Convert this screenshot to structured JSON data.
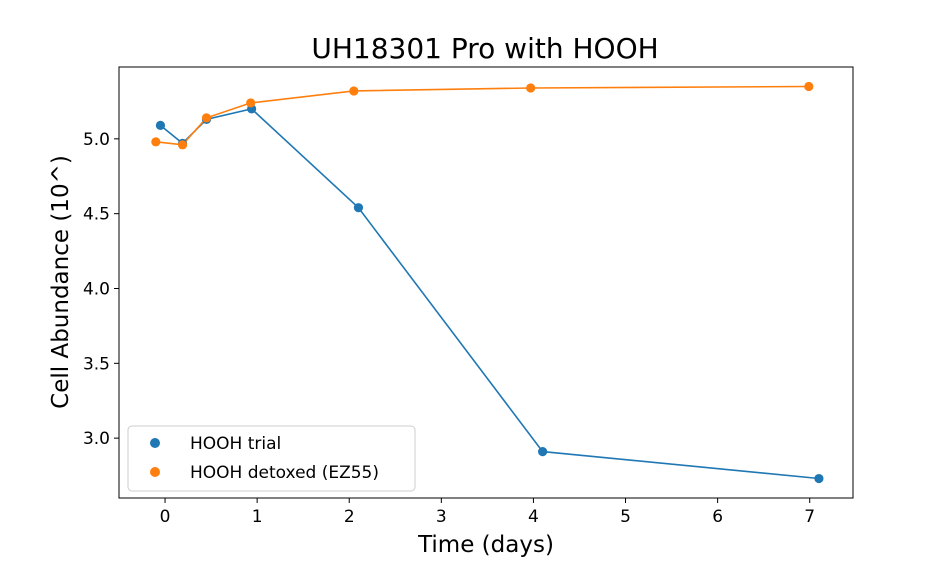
{
  "chart_data": {
    "type": "line",
    "title": "UH18301 Pro with HOOH",
    "xlabel": "Time (days)",
    "ylabel": "Cell Abundance (10^)",
    "xlim": [
      -0.5,
      7.47
    ],
    "ylim": [
      2.6,
      5.48
    ],
    "xticks": [
      0,
      1,
      2,
      3,
      4,
      5,
      6,
      7
    ],
    "yticks": [
      3.0,
      3.5,
      4.0,
      4.5,
      5.0
    ],
    "ytick_labels": [
      "3.0",
      "3.5",
      "4.0",
      "4.5",
      "5.0"
    ],
    "legend": {
      "position": "bottom-left"
    },
    "grid": false,
    "series": [
      {
        "name": "HOOH trial",
        "color": "#1f77b4",
        "x": [
          -0.05,
          0.19,
          0.45,
          0.94,
          2.1,
          4.1,
          7.1
        ],
        "y": [
          5.09,
          4.97,
          5.13,
          5.2,
          4.54,
          2.91,
          2.73
        ]
      },
      {
        "name": "HOOH detoxed (EZ55)",
        "color": "#ff7f0e",
        "x": [
          -0.1,
          0.19,
          0.45,
          0.93,
          2.05,
          3.97,
          6.99
        ],
        "y": [
          4.98,
          4.96,
          5.14,
          5.24,
          5.32,
          5.34,
          5.35
        ]
      }
    ]
  }
}
